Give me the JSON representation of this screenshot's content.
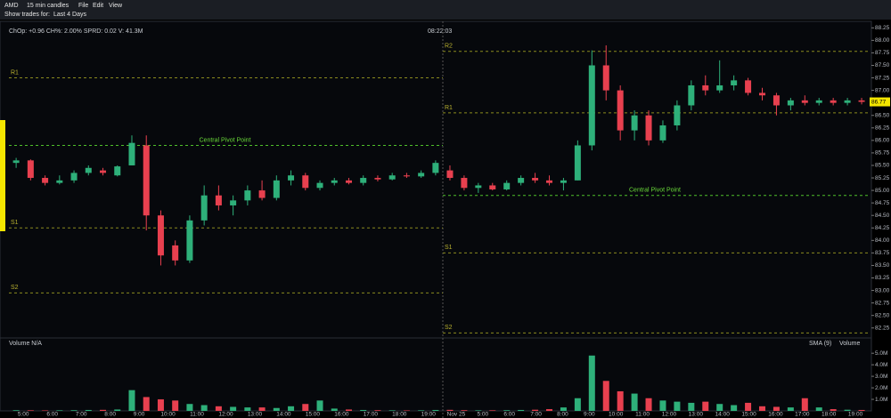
{
  "header": {
    "symbol": "AMD",
    "interval": "15 min candles",
    "menu": [
      "File",
      "Edit",
      "View"
    ],
    "show_trades_label": "Show trades for:",
    "show_trades_value": "Last 4 Days"
  },
  "info": {
    "stats": "ChOp: +0.96 CH%: 2.00% SPRD: 0.02 V: 41.3M",
    "clock": "08:22:03"
  },
  "volume_panel": {
    "title": "Volume N/A",
    "legend": [
      "SMA (9)",
      "Volume"
    ]
  },
  "chart_data": {
    "type": "candlestick",
    "up_color": "#2eb07a",
    "down_color": "#e8404f",
    "ylim": [
      82.05,
      88.38
    ],
    "yticks": [
      88.25,
      {
        "value": 88,
        "label": "88.00"
      },
      87.75,
      {
        "value": 87.5,
        "label": "87.50"
      },
      87.25,
      {
        "value": 87,
        "label": "87.00"
      },
      86.75,
      {
        "value": 86.5,
        "label": "86.50"
      },
      86.25,
      {
        "value": 86,
        "label": "86.00"
      },
      85.75,
      {
        "value": 85.5,
        "label": "85.50"
      },
      85.25,
      {
        "value": 85,
        "label": "85.00"
      },
      84.75,
      {
        "value": 84.5,
        "label": "84.50"
      },
      84.25,
      {
        "value": 84,
        "label": "84.00"
      },
      83.75,
      {
        "value": 83.5,
        "label": "83.50"
      },
      83.25,
      {
        "value": 83,
        "label": "83.00"
      },
      82.75,
      {
        "value": 82.5,
        "label": "82.50"
      },
      82.25
    ],
    "x_labels_day1": [
      "5:00",
      "6:00",
      "7:00",
      "8:00",
      "9:00",
      "10:00",
      "11:00",
      "12:00",
      "13:00",
      "14:00",
      "15:00",
      "16:00",
      "17:00",
      "18:00",
      "19:00"
    ],
    "x_labels_day2": [
      "Nov 25",
      "5:00",
      "6:00",
      "7:00",
      "8:00",
      "9:00",
      "10:00",
      "11:00",
      "12:00",
      "13:00",
      "14:00",
      "15:00",
      "16:00",
      "17:00",
      "18:00",
      "19:00"
    ],
    "pivots_day1": [
      {
        "label": "R1",
        "value": 87.25
      },
      {
        "label": "Central Pivot Point",
        "value": 85.9
      },
      {
        "label": "S1",
        "value": 84.25
      },
      {
        "label": "S2",
        "value": 82.95
      }
    ],
    "pivots_day2": [
      {
        "label": "R2",
        "value": 87.78
      },
      {
        "label": "R1",
        "value": 86.55
      },
      {
        "label": "Central Pivot Point",
        "value": 84.9
      },
      {
        "label": "S1",
        "value": 83.75
      },
      {
        "label": "S2",
        "value": 82.15
      }
    ],
    "last_price": 86.77,
    "open": [
      85.55,
      85.6,
      85.25,
      85.15,
      85.2,
      85.35,
      85.4,
      85.3,
      85.5,
      85.9,
      84.5,
      83.9,
      83.6,
      84.4,
      84.9,
      84.7,
      84.8,
      85.0,
      84.85,
      85.2,
      85.3,
      85.05,
      85.15,
      85.2,
      85.15,
      85.25,
      85.22,
      85.3,
      85.28,
      85.35,
      85.4,
      85.25,
      85.05,
      85.1,
      85.02,
      85.15,
      85.25,
      85.2,
      85.15,
      85.2,
      85.9,
      87.5,
      87.0,
      86.2,
      86.5,
      86.0,
      86.3,
      86.7,
      87.1,
      87.0,
      87.1,
      87.2,
      86.95,
      86.9,
      86.7,
      86.8,
      86.75,
      86.8,
      86.75,
      86.8
    ],
    "high": [
      85.65,
      85.62,
      85.3,
      85.3,
      85.4,
      85.5,
      85.45,
      85.5,
      86.1,
      86.1,
      84.6,
      84.0,
      84.5,
      85.1,
      85.1,
      84.9,
      85.1,
      85.2,
      85.3,
      85.4,
      85.35,
      85.2,
      85.25,
      85.25,
      85.3,
      85.3,
      85.35,
      85.35,
      85.4,
      85.6,
      85.5,
      85.3,
      85.15,
      85.15,
      85.2,
      85.3,
      85.35,
      85.3,
      85.25,
      86.0,
      87.8,
      87.9,
      87.1,
      86.6,
      86.6,
      86.4,
      86.8,
      87.2,
      87.3,
      87.6,
      87.3,
      87.25,
      87.05,
      86.95,
      86.85,
      86.9,
      86.85,
      86.85,
      86.85,
      86.85
    ],
    "low": [
      85.45,
      85.2,
      85.1,
      85.12,
      85.15,
      85.3,
      85.3,
      85.28,
      85.5,
      84.2,
      83.5,
      83.5,
      83.55,
      84.3,
      84.6,
      84.5,
      84.7,
      84.8,
      84.8,
      85.1,
      85.0,
      85.0,
      85.1,
      85.12,
      85.1,
      85.18,
      85.2,
      85.25,
      85.25,
      85.3,
      85.2,
      85.0,
      84.95,
      85.0,
      85.0,
      85.1,
      85.15,
      85.1,
      85.0,
      85.2,
      85.8,
      86.8,
      86.0,
      86.0,
      85.9,
      85.95,
      86.2,
      86.6,
      86.9,
      86.95,
      87.0,
      86.9,
      86.8,
      86.5,
      86.6,
      86.7,
      86.7,
      86.7,
      86.7,
      86.72
    ],
    "close": [
      85.6,
      85.25,
      85.15,
      85.2,
      85.35,
      85.45,
      85.35,
      85.48,
      85.95,
      84.5,
      83.7,
      83.6,
      84.4,
      84.9,
      84.7,
      84.8,
      85.0,
      84.85,
      85.2,
      85.3,
      85.05,
      85.15,
      85.2,
      85.15,
      85.25,
      85.22,
      85.3,
      85.28,
      85.35,
      85.55,
      85.25,
      85.05,
      85.1,
      85.02,
      85.15,
      85.25,
      85.2,
      85.15,
      85.2,
      85.9,
      87.5,
      87.0,
      86.2,
      86.5,
      86.0,
      86.3,
      86.7,
      87.1,
      87.0,
      87.1,
      87.2,
      86.95,
      86.9,
      86.7,
      86.8,
      86.75,
      86.8,
      86.75,
      86.8,
      86.77
    ],
    "volume_ylim": [
      0,
      5400000
    ],
    "volume_ticks": [
      {
        "value": 1000000,
        "label": "1.0M"
      },
      {
        "value": 2000000,
        "label": "2.0M"
      },
      {
        "value": 3000000,
        "label": "3.0M"
      },
      {
        "value": 4000000,
        "label": "4.0M"
      },
      {
        "value": 5000000,
        "label": "5.0M"
      }
    ],
    "volume": [
      60000,
      50000,
      40000,
      50000,
      60000,
      80000,
      90000,
      120000,
      1800000,
      1200000,
      1000000,
      900000,
      600000,
      500000,
      400000,
      350000,
      300000,
      300000,
      250000,
      400000,
      600000,
      900000,
      200000,
      120000,
      80000,
      60000,
      50000,
      40000,
      50000,
      80000,
      90000,
      60000,
      50000,
      50000,
      60000,
      80000,
      100000,
      150000,
      300000,
      1100000,
      4800000,
      2600000,
      1700000,
      1500000,
      1100000,
      900000,
      800000,
      700000,
      800000,
      600000,
      500000,
      700000,
      400000,
      350000,
      300000,
      1100000,
      300000,
      150000,
      100000,
      80000
    ]
  }
}
